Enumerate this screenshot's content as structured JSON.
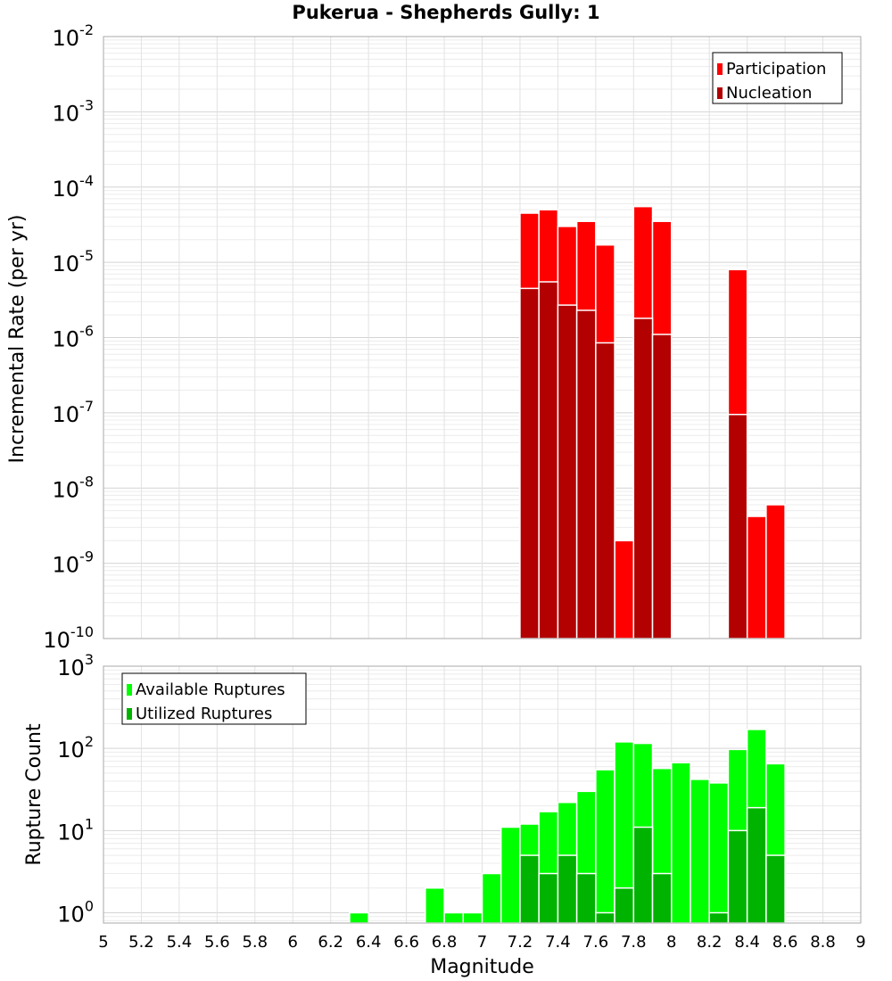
{
  "chart_data": [
    {
      "type": "bar",
      "title": "Pukerua - Shepherds Gully: 1",
      "ylabel": "Incremental Rate (per yr)",
      "yscale": "log",
      "ylim": [
        1e-10,
        0.01
      ],
      "y_tick_labels": [
        {
          "base": "10",
          "exp": "-10"
        },
        {
          "base": "10",
          "exp": "-9"
        },
        {
          "base": "10",
          "exp": "-8"
        },
        {
          "base": "10",
          "exp": "-7"
        },
        {
          "base": "10",
          "exp": "-6"
        },
        {
          "base": "10",
          "exp": "-5"
        },
        {
          "base": "10",
          "exp": "-4"
        },
        {
          "base": "10",
          "exp": "-3"
        },
        {
          "base": "10",
          "exp": "-2"
        }
      ],
      "legend_position": "top-right",
      "grid": true,
      "x": [
        7.25,
        7.35,
        7.45,
        7.55,
        7.65,
        7.75,
        7.85,
        7.95,
        8.35,
        8.45,
        8.55
      ],
      "series": [
        {
          "name": "Participation",
          "color": "#ff0000",
          "values": [
            4.5e-05,
            5e-05,
            3e-05,
            3.5e-05,
            1.7e-05,
            2e-09,
            5.5e-05,
            3.5e-05,
            8e-06,
            4.2e-09,
            6e-09
          ]
        },
        {
          "name": "Nucleation",
          "color": "#b30000",
          "values": [
            4.5e-06,
            5.5e-06,
            2.7e-06,
            2.3e-06,
            8.5e-07,
            null,
            1.8e-06,
            1.1e-06,
            9.5e-08,
            null,
            null
          ]
        }
      ]
    },
    {
      "type": "bar",
      "xlabel": "Magnitude",
      "ylabel": "Rupture Count",
      "yscale": "log",
      "ylim": [
        0.75,
        1000
      ],
      "xlim": [
        5,
        9
      ],
      "x_ticks": [
        "5",
        "5.2",
        "5.4",
        "5.6",
        "5.8",
        "6",
        "6.2",
        "6.4",
        "6.6",
        "6.8",
        "7",
        "7.2",
        "7.4",
        "7.6",
        "7.8",
        "8",
        "8.2",
        "8.4",
        "8.6",
        "8.8",
        "9"
      ],
      "y_tick_labels": [
        {
          "base": "10",
          "exp": "0"
        },
        {
          "base": "10",
          "exp": "1"
        },
        {
          "base": "10",
          "exp": "2"
        },
        {
          "base": "10",
          "exp": "3"
        }
      ],
      "legend_position": "top-left",
      "grid": true,
      "x": [
        6.35,
        6.75,
        6.85,
        6.95,
        7.05,
        7.15,
        7.25,
        7.35,
        7.45,
        7.55,
        7.65,
        7.75,
        7.85,
        7.95,
        8.05,
        8.15,
        8.25,
        8.35,
        8.45,
        8.55
      ],
      "series": [
        {
          "name": "Available Ruptures",
          "color": "#00ff00",
          "values": [
            1,
            2,
            1,
            1,
            3,
            11,
            12,
            17,
            22,
            30,
            55,
            120,
            115,
            57,
            67,
            42,
            38,
            97,
            170,
            65
          ]
        },
        {
          "name": "Utilized Ruptures",
          "color": "#00b300",
          "values": [
            null,
            null,
            null,
            null,
            null,
            null,
            5,
            3,
            5,
            3,
            1,
            2,
            11,
            3,
            null,
            null,
            1,
            10,
            19,
            5
          ]
        }
      ]
    }
  ]
}
